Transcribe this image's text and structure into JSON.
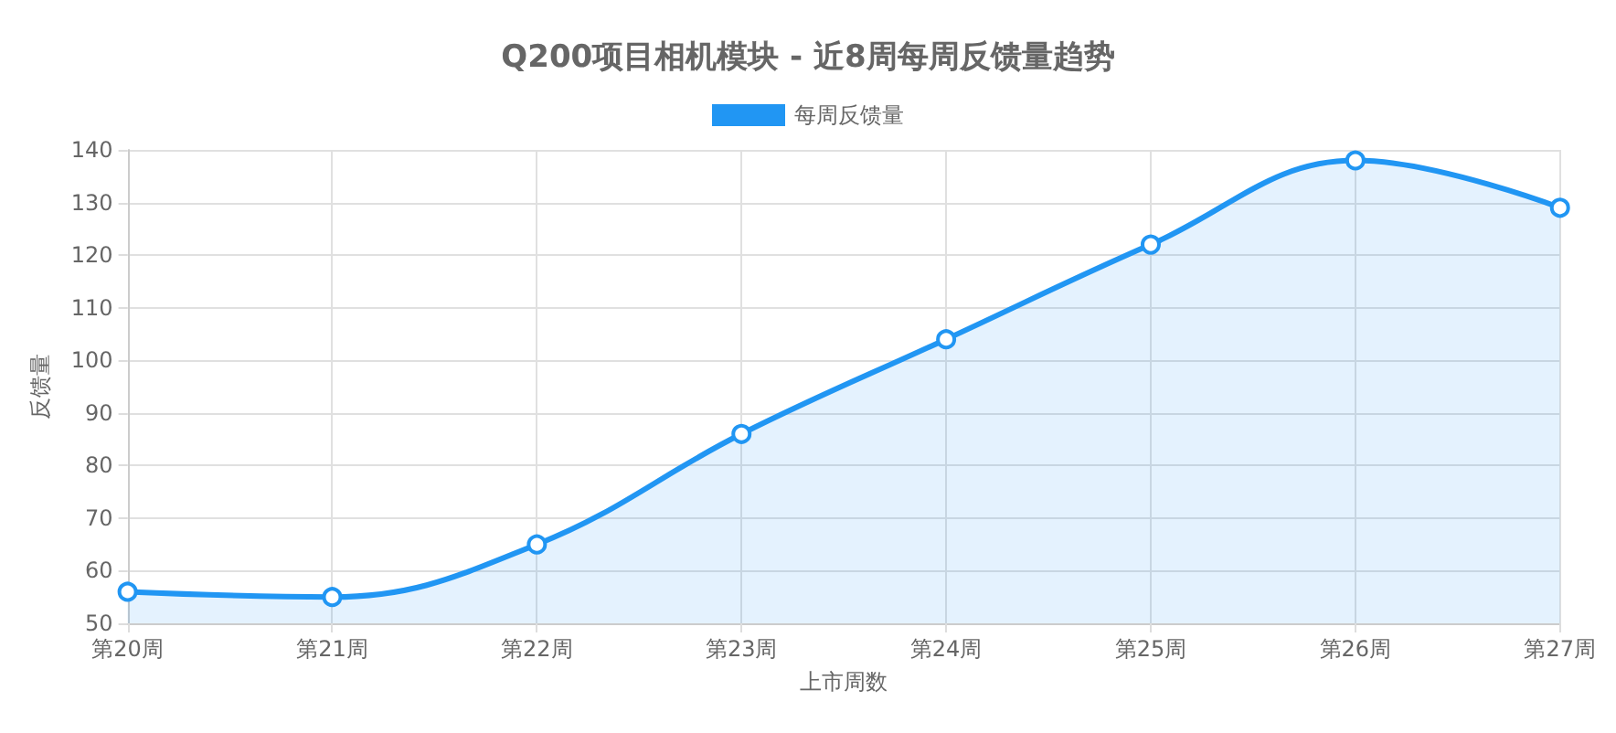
{
  "chart_data": {
    "type": "area",
    "title": "Q200项目相机模块 - 近8周每周反馈量趋势",
    "xlabel": "上市周数",
    "ylabel": "反馈量",
    "categories": [
      "第20周",
      "第21周",
      "第22周",
      "第23周",
      "第24周",
      "第25周",
      "第26周",
      "第27周"
    ],
    "series": [
      {
        "name": "每周反馈量",
        "color": "#2196f3",
        "values": [
          56,
          55,
          65,
          86,
          104,
          122,
          138,
          129
        ]
      }
    ],
    "ylim": [
      50,
      140
    ],
    "yticks": [
      50,
      60,
      70,
      80,
      90,
      100,
      110,
      120,
      130,
      140
    ],
    "grid": true,
    "legend": "top",
    "marker": "circle",
    "line_style": "solid"
  }
}
